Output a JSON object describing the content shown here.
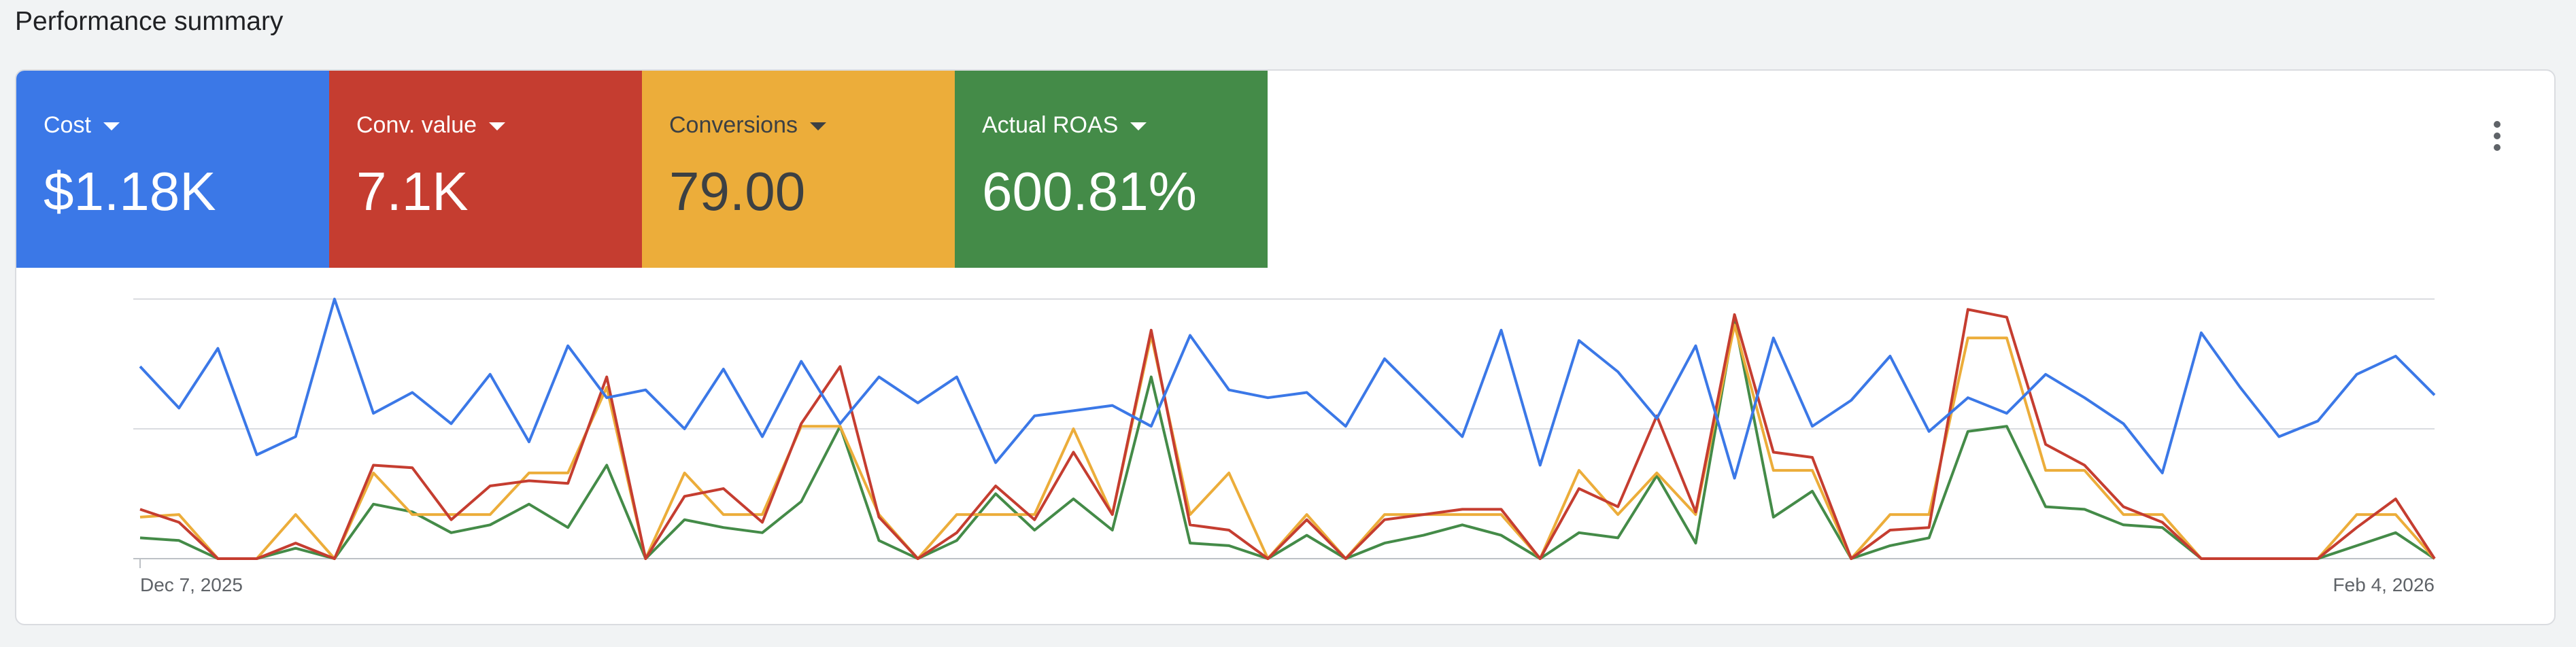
{
  "page": {
    "title": "Performance summary"
  },
  "metrics": [
    {
      "label": "Cost",
      "value": "$1.18K",
      "color": "#3b78e7"
    },
    {
      "label": "Conv. value",
      "value": "7.1K",
      "color": "#c53d30"
    },
    {
      "label": "Conversions",
      "value": "79.00",
      "color": "#ecad3a"
    },
    {
      "label": "Actual ROAS",
      "value": "600.81%",
      "color": "#448b48"
    }
  ],
  "menu": {
    "icon": "more-vert-icon"
  },
  "chart_data": {
    "type": "line",
    "x_start_label": "Dec 7, 2025",
    "x_end_label": "Feb 4, 2026",
    "grid": true,
    "ylim": [
      0,
      100
    ],
    "series": [
      {
        "name": "Cost",
        "color": "#3b78e7",
        "values": [
          74,
          58,
          81,
          40,
          47,
          100,
          56,
          64,
          52,
          71,
          45,
          82,
          62,
          65,
          50,
          73,
          47,
          76,
          52,
          70,
          60,
          70,
          37,
          55,
          57,
          59,
          51,
          86,
          65,
          62,
          64,
          51,
          77,
          62,
          47,
          88,
          36,
          84,
          72,
          54,
          82,
          31,
          85,
          51,
          61,
          78,
          49,
          62,
          56,
          71,
          62,
          52,
          33,
          87,
          66,
          47,
          53,
          71,
          78,
          63
        ]
      },
      {
        "name": "Conv. value",
        "color": "#c53d30",
        "values": [
          19,
          14,
          0,
          0,
          6,
          0,
          36,
          35,
          15,
          28,
          30,
          29,
          70,
          0,
          24,
          27,
          14,
          52,
          74,
          16,
          0,
          10,
          28,
          15,
          41,
          17,
          88,
          13,
          11,
          0,
          15,
          0,
          15,
          17,
          19,
          19,
          0,
          27,
          20,
          55,
          18,
          94,
          41,
          39,
          0,
          11,
          12,
          96,
          93,
          44,
          36,
          20,
          14,
          0,
          0,
          0,
          0,
          12,
          23,
          0
        ]
      },
      {
        "name": "Conversions",
        "color": "#ecad3a",
        "values": [
          16,
          17,
          0,
          0,
          17,
          0,
          33,
          17,
          17,
          17,
          33,
          33,
          66,
          0,
          33,
          17,
          17,
          51,
          51,
          17,
          0,
          17,
          17,
          17,
          50,
          17,
          86,
          17,
          33,
          0,
          17,
          0,
          17,
          17,
          17,
          17,
          0,
          34,
          17,
          33,
          17,
          90,
          34,
          34,
          0,
          17,
          17,
          85,
          85,
          34,
          34,
          17,
          17,
          0,
          0,
          0,
          0,
          17,
          17,
          0
        ]
      },
      {
        "name": "Actual ROAS",
        "color": "#448b48",
        "values": [
          8,
          7,
          0,
          0,
          4,
          0,
          21,
          18,
          10,
          13,
          21,
          12,
          36,
          0,
          15,
          12,
          10,
          22,
          51,
          7,
          0,
          7,
          25,
          11,
          23,
          11,
          70,
          6,
          5,
          0,
          9,
          0,
          6,
          9,
          13,
          9,
          0,
          10,
          8,
          32,
          6,
          92,
          16,
          26,
          0,
          5,
          8,
          49,
          51,
          20,
          19,
          13,
          12,
          0,
          0,
          0,
          0,
          5,
          10,
          0
        ]
      }
    ]
  }
}
